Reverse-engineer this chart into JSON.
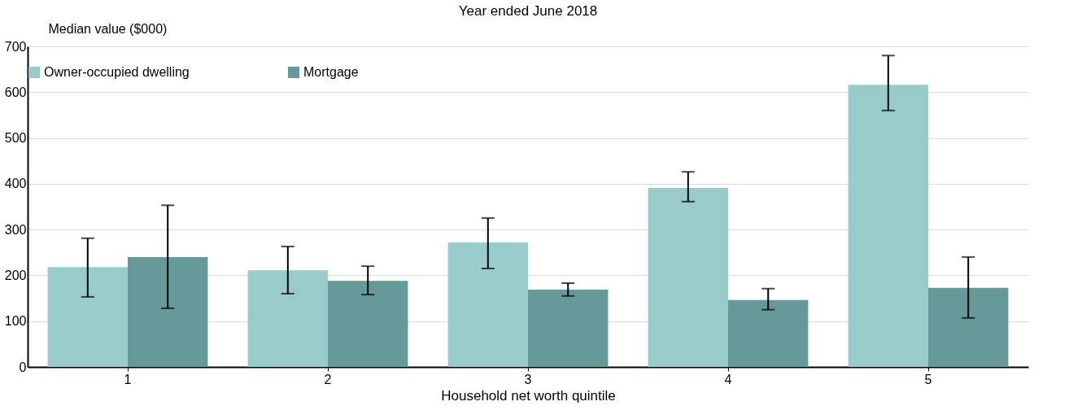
{
  "chart_data": {
    "type": "bar",
    "title": "Year ended June 2018",
    "xlabel": "Household net worth quintile",
    "ylabel": "Median value ($000)",
    "categories": [
      "1",
      "2",
      "3",
      "4",
      "5"
    ],
    "series": [
      {
        "name": "Owner-occupied dwelling",
        "color": "#9acbcb",
        "values": [
          218,
          211,
          272,
          391,
          616
        ],
        "errors": [
          [
            153,
            281
          ],
          [
            160,
            263
          ],
          [
            215,
            325
          ],
          [
            361,
            426
          ],
          [
            560,
            680
          ]
        ]
      },
      {
        "name": "Mortgage",
        "color": "#669999",
        "values": [
          240,
          188,
          169,
          146,
          173
        ],
        "errors": [
          [
            128,
            353
          ],
          [
            158,
            220
          ],
          [
            155,
            183
          ],
          [
            125,
            171
          ],
          [
            107,
            240
          ]
        ]
      }
    ],
    "ylim": [
      0,
      700
    ],
    "yticks": [
      0,
      100,
      200,
      300,
      400,
      500,
      600,
      700
    ],
    "grid": "y",
    "legend": "top"
  }
}
